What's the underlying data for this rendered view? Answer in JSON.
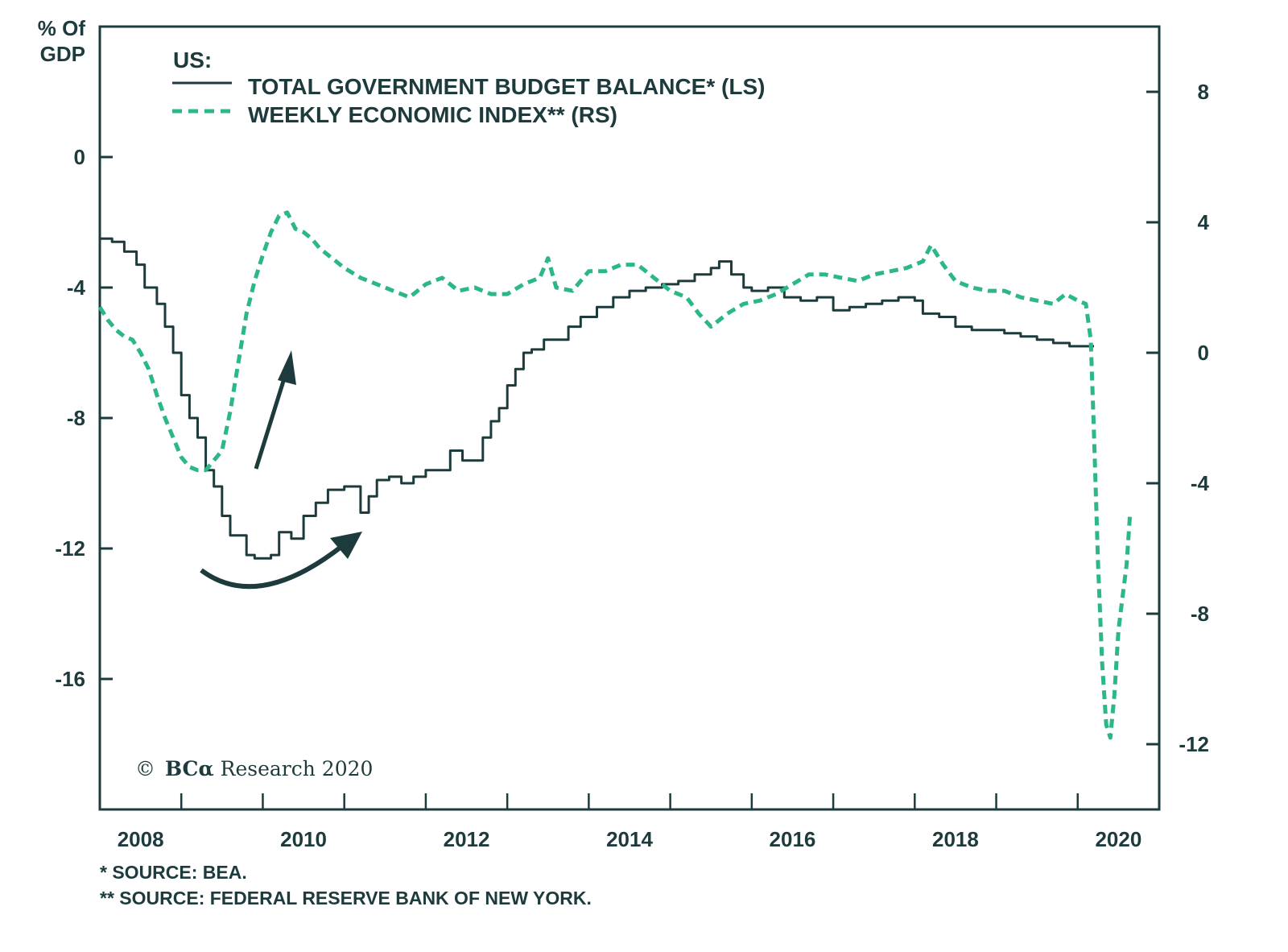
{
  "chart_data": {
    "type": "line",
    "title": "",
    "ylabel_left": "% Of GDP",
    "ylabel_left_lines": [
      "% Of",
      "GDP"
    ],
    "legend": {
      "heading": "US:",
      "placement": "top-left",
      "entries": [
        {
          "label": "TOTAL GOVERNMENT BUDGET BALANCE* (LS)",
          "style": "solid",
          "color": "#1d3b3d"
        },
        {
          "label": "WEEKLY ECONOMIC INDEX** (RS)",
          "style": "dashed",
          "color": "#2cb787"
        }
      ]
    },
    "x_range": [
      2008.0,
      2021.0
    ],
    "x_ticks": [
      2009,
      2010,
      2011,
      2012,
      2013,
      2014,
      2015,
      2016,
      2017,
      2018,
      2019,
      2020
    ],
    "x_tick_labels": [
      {
        "label": "2008",
        "at": 2008.5
      },
      {
        "label": "2010",
        "at": 2010.5
      },
      {
        "label": "2012",
        "at": 2012.5
      },
      {
        "label": "2014",
        "at": 2014.5
      },
      {
        "label": "2016",
        "at": 2016.5
      },
      {
        "label": "2018",
        "at": 2018.5
      },
      {
        "label": "2020",
        "at": 2020.5
      }
    ],
    "y_left": {
      "range": [
        -20,
        4
      ],
      "ticks": [
        0,
        -4,
        -8,
        -12,
        -16
      ],
      "tick_labels": [
        "0",
        "-4",
        "-8",
        "-12",
        "-16"
      ]
    },
    "y_right": {
      "range": [
        -14,
        10
      ],
      "ticks": [
        8,
        4,
        0,
        -4,
        -8,
        -12
      ],
      "tick_labels": [
        "8",
        "4",
        "0",
        "-4",
        "-8",
        "-12"
      ]
    },
    "grid": false,
    "series": [
      {
        "name": "TOTAL GOVERNMENT BUDGET BALANCE* (LS)",
        "axis": "left",
        "style": "step",
        "color": "#1d3b3d",
        "x": [
          2008.0,
          2008.15,
          2008.3,
          2008.45,
          2008.55,
          2008.7,
          2008.8,
          2008.9,
          2009.0,
          2009.1,
          2009.2,
          2009.3,
          2009.4,
          2009.5,
          2009.6,
          2009.7,
          2009.8,
          2009.9,
          2010.0,
          2010.1,
          2010.2,
          2010.35,
          2010.5,
          2010.65,
          2010.8,
          2011.0,
          2011.15,
          2011.2,
          2011.3,
          2011.4,
          2011.55,
          2011.7,
          2011.85,
          2012.0,
          2012.15,
          2012.3,
          2012.45,
          2012.6,
          2012.7,
          2012.8,
          2012.9,
          2013.0,
          2013.1,
          2013.2,
          2013.3,
          2013.45,
          2013.6,
          2013.75,
          2013.9,
          2014.1,
          2014.3,
          2014.5,
          2014.7,
          2014.9,
          2015.1,
          2015.3,
          2015.5,
          2015.6,
          2015.75,
          2015.9,
          2016.0,
          2016.2,
          2016.4,
          2016.6,
          2016.8,
          2017.0,
          2017.2,
          2017.4,
          2017.6,
          2017.8,
          2018.0,
          2018.1,
          2018.3,
          2018.5,
          2018.7,
          2018.9,
          2019.1,
          2019.3,
          2019.5,
          2019.7,
          2019.9,
          2020.05,
          2020.2
        ],
        "values": [
          -2.5,
          -2.6,
          -2.9,
          -3.3,
          -4.0,
          -4.5,
          -5.2,
          -6.0,
          -7.3,
          -8.0,
          -8.6,
          -9.6,
          -10.1,
          -11.0,
          -11.6,
          -11.6,
          -12.2,
          -12.3,
          -12.3,
          -12.2,
          -11.5,
          -11.7,
          -11.0,
          -10.6,
          -10.2,
          -10.1,
          -10.1,
          -10.9,
          -10.4,
          -9.9,
          -9.8,
          -10.0,
          -9.8,
          -9.6,
          -9.6,
          -9.0,
          -9.3,
          -9.3,
          -8.6,
          -8.1,
          -7.7,
          -7.0,
          -6.5,
          -6.0,
          -5.9,
          -5.6,
          -5.6,
          -5.2,
          -4.9,
          -4.6,
          -4.3,
          -4.1,
          -4.0,
          -3.9,
          -3.8,
          -3.6,
          -3.4,
          -3.2,
          -3.6,
          -4.0,
          -4.1,
          -4.0,
          -4.3,
          -4.4,
          -4.3,
          -4.7,
          -4.6,
          -4.5,
          -4.4,
          -4.3,
          -4.4,
          -4.8,
          -4.9,
          -5.2,
          -5.3,
          -5.3,
          -5.4,
          -5.5,
          -5.6,
          -5.7,
          -5.8,
          -5.8,
          -5.8
        ]
      },
      {
        "name": "WEEKLY ECONOMIC INDEX** (RS)",
        "axis": "right",
        "style": "dashed",
        "color": "#2cb787",
        "x": [
          2008.0,
          2008.1,
          2008.2,
          2008.3,
          2008.4,
          2008.5,
          2008.6,
          2008.7,
          2008.8,
          2008.9,
          2009.0,
          2009.1,
          2009.2,
          2009.3,
          2009.4,
          2009.5,
          2009.6,
          2009.7,
          2009.8,
          2009.9,
          2010.0,
          2010.1,
          2010.2,
          2010.3,
          2010.4,
          2010.5,
          2010.6,
          2010.7,
          2010.8,
          2010.9,
          2011.0,
          2011.2,
          2011.4,
          2011.6,
          2011.8,
          2012.0,
          2012.2,
          2012.4,
          2012.6,
          2012.8,
          2013.0,
          2013.2,
          2013.4,
          2013.5,
          2013.6,
          2013.8,
          2014.0,
          2014.2,
          2014.4,
          2014.6,
          2014.8,
          2015.0,
          2015.2,
          2015.35,
          2015.5,
          2015.7,
          2015.9,
          2016.1,
          2016.3,
          2016.5,
          2016.7,
          2016.9,
          2017.1,
          2017.3,
          2017.5,
          2017.7,
          2017.9,
          2018.1,
          2018.2,
          2018.35,
          2018.5,
          2018.7,
          2018.9,
          2019.1,
          2019.3,
          2019.5,
          2019.7,
          2019.85,
          2020.0,
          2020.1,
          2020.16,
          2020.2,
          2020.25,
          2020.3,
          2020.35,
          2020.4,
          2020.45,
          2020.5,
          2020.55,
          2020.6,
          2020.64
        ],
        "values": [
          1.4,
          1.0,
          0.7,
          0.5,
          0.4,
          0.0,
          -0.5,
          -1.3,
          -2.0,
          -2.6,
          -3.2,
          -3.5,
          -3.6,
          -3.6,
          -3.3,
          -3.0,
          -1.8,
          -0.3,
          1.2,
          2.2,
          3.0,
          3.7,
          4.2,
          4.3,
          3.8,
          3.7,
          3.5,
          3.2,
          3.0,
          2.8,
          2.6,
          2.3,
          2.1,
          1.9,
          1.7,
          2.1,
          2.3,
          1.9,
          2.0,
          1.8,
          1.8,
          2.1,
          2.3,
          2.9,
          2.0,
          1.9,
          2.5,
          2.5,
          2.7,
          2.7,
          2.3,
          1.9,
          1.7,
          1.2,
          0.8,
          1.2,
          1.5,
          1.6,
          1.8,
          2.1,
          2.4,
          2.4,
          2.3,
          2.2,
          2.4,
          2.5,
          2.6,
          2.8,
          3.3,
          2.7,
          2.2,
          2.0,
          1.9,
          1.9,
          1.7,
          1.6,
          1.5,
          1.8,
          1.6,
          1.5,
          0.4,
          -2.5,
          -6.5,
          -9.5,
          -11.4,
          -11.8,
          -10.5,
          -8.5,
          -7.5,
          -6.5,
          -5.0
        ]
      }
    ],
    "annotations": [
      {
        "type": "arrow",
        "description": "straight arrow pointing up-right over WEI recovery (2009)"
      },
      {
        "type": "curved-arrow",
        "description": "curved arrow under budget balance trough (2009-2011)"
      },
      {
        "type": "text",
        "text": "© BCα Research 2020"
      }
    ]
  },
  "footer": {
    "sources": [
      "* SOURCE: BEA.",
      "** SOURCE: FEDERAL RESERVE BANK OF NEW YORK."
    ]
  },
  "watermark": {
    "copyright_symbol": "©",
    "brand": "BCα",
    "rest": " Research 2020"
  },
  "colors": {
    "dark": "#1d3b3d",
    "green": "#2cb787",
    "background": "#ffffff"
  }
}
